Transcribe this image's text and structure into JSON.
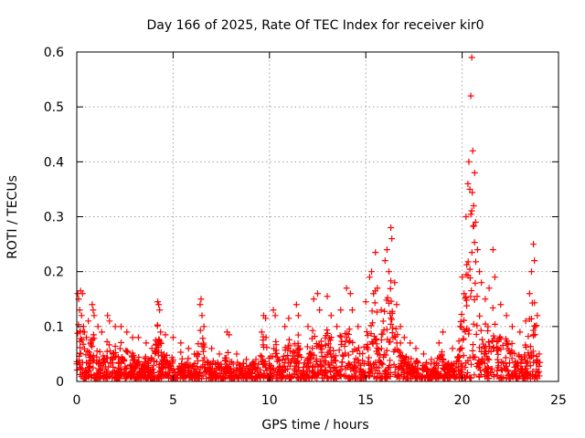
{
  "chart_data": {
    "type": "scatter",
    "title": "Day 166 of 2025, Rate Of TEC Index for receiver kir0",
    "xlabel": "GPS time / hours",
    "ylabel": "ROTI / TECUs",
    "xlim": [
      0,
      25
    ],
    "ylim": [
      0,
      0.6
    ],
    "xticks": [
      0,
      5,
      10,
      15,
      20,
      25
    ],
    "yticks": [
      0,
      0.1,
      0.2,
      0.3,
      0.4,
      0.5,
      0.6
    ],
    "grid": true,
    "marker": "+",
    "color": "#ff0000",
    "series": [
      {
        "name": "ROTI",
        "points": [
          [
            0.05,
            0.16
          ],
          [
            0.1,
            0.15
          ],
          [
            0.15,
            0.13
          ],
          [
            0.2,
            0.165
          ],
          [
            0.25,
            0.12
          ],
          [
            0.3,
            0.16
          ],
          [
            0.35,
            0.1
          ],
          [
            0.4,
            0.09
          ],
          [
            0.5,
            0.08
          ],
          [
            0.6,
            0.11
          ],
          [
            0.8,
            0.14
          ],
          [
            0.85,
            0.13
          ],
          [
            0.9,
            0.12
          ],
          [
            1.1,
            0.1
          ],
          [
            1.3,
            0.09
          ],
          [
            1.6,
            0.12
          ],
          [
            1.7,
            0.11
          ],
          [
            2.0,
            0.1
          ],
          [
            2.3,
            0.1
          ],
          [
            2.6,
            0.09
          ],
          [
            2.9,
            0.08
          ],
          [
            3.2,
            0.08
          ],
          [
            3.6,
            0.07
          ],
          [
            3.9,
            0.06
          ],
          [
            4.2,
            0.145
          ],
          [
            4.25,
            0.14
          ],
          [
            4.3,
            0.13
          ],
          [
            4.35,
            0.09
          ],
          [
            4.6,
            0.085
          ],
          [
            5.0,
            0.08
          ],
          [
            5.4,
            0.07
          ],
          [
            5.8,
            0.06
          ],
          [
            6.1,
            0.05
          ],
          [
            6.4,
            0.14
          ],
          [
            6.45,
            0.15
          ],
          [
            6.5,
            0.12
          ],
          [
            6.6,
            0.1
          ],
          [
            7.0,
            0.06
          ],
          [
            7.4,
            0.05
          ],
          [
            7.8,
            0.09
          ],
          [
            7.9,
            0.085
          ],
          [
            8.3,
            0.05
          ],
          [
            8.8,
            0.04
          ],
          [
            9.3,
            0.04
          ],
          [
            9.6,
            0.09
          ],
          [
            9.7,
            0.12
          ],
          [
            9.8,
            0.115
          ],
          [
            10.2,
            0.13
          ],
          [
            10.3,
            0.12
          ],
          [
            10.8,
            0.1
          ],
          [
            11.0,
            0.115
          ],
          [
            11.4,
            0.14
          ],
          [
            11.5,
            0.12
          ],
          [
            12.0,
            0.1
          ],
          [
            12.3,
            0.15
          ],
          [
            12.5,
            0.16
          ],
          [
            12.6,
            0.13
          ],
          [
            13.0,
            0.155
          ],
          [
            13.2,
            0.12
          ],
          [
            13.5,
            0.1
          ],
          [
            13.7,
            0.13
          ],
          [
            14.0,
            0.17
          ],
          [
            14.2,
            0.16
          ],
          [
            14.3,
            0.13
          ],
          [
            14.6,
            0.1
          ],
          [
            15.0,
            0.145
          ],
          [
            15.2,
            0.19
          ],
          [
            15.3,
            0.2
          ],
          [
            15.4,
            0.16
          ],
          [
            15.5,
            0.235
          ],
          [
            15.6,
            0.17
          ],
          [
            15.8,
            0.13
          ],
          [
            16.0,
            0.22
          ],
          [
            16.1,
            0.24
          ],
          [
            16.2,
            0.2
          ],
          [
            16.3,
            0.28
          ],
          [
            16.35,
            0.26
          ],
          [
            16.5,
            0.18
          ],
          [
            16.6,
            0.14
          ],
          [
            16.8,
            0.1
          ],
          [
            17.0,
            0.08
          ],
          [
            17.3,
            0.07
          ],
          [
            17.6,
            0.06
          ],
          [
            18.0,
            0.05
          ],
          [
            18.4,
            0.04
          ],
          [
            18.8,
            0.07
          ],
          [
            19.0,
            0.09
          ],
          [
            19.5,
            0.06
          ],
          [
            19.9,
            0.1
          ],
          [
            20.0,
            0.19
          ],
          [
            20.1,
            0.16
          ],
          [
            20.2,
            0.3
          ],
          [
            20.3,
            0.36
          ],
          [
            20.35,
            0.4
          ],
          [
            20.4,
            0.35
          ],
          [
            20.45,
            0.52
          ],
          [
            20.5,
            0.59
          ],
          [
            20.55,
            0.42
          ],
          [
            20.6,
            0.32
          ],
          [
            20.65,
            0.38
          ],
          [
            20.7,
            0.29
          ],
          [
            20.8,
            0.24
          ],
          [
            20.9,
            0.2
          ],
          [
            21.0,
            0.18
          ],
          [
            21.2,
            0.15
          ],
          [
            21.4,
            0.17
          ],
          [
            21.6,
            0.24
          ],
          [
            21.7,
            0.19
          ],
          [
            22.0,
            0.14
          ],
          [
            22.3,
            0.12
          ],
          [
            22.6,
            0.1
          ],
          [
            23.0,
            0.09
          ],
          [
            23.3,
            0.11
          ],
          [
            23.5,
            0.16
          ],
          [
            23.6,
            0.2
          ],
          [
            23.7,
            0.25
          ],
          [
            23.75,
            0.22
          ],
          [
            23.9,
            0.12
          ],
          [
            24.0,
            0.05
          ]
        ]
      }
    ]
  }
}
